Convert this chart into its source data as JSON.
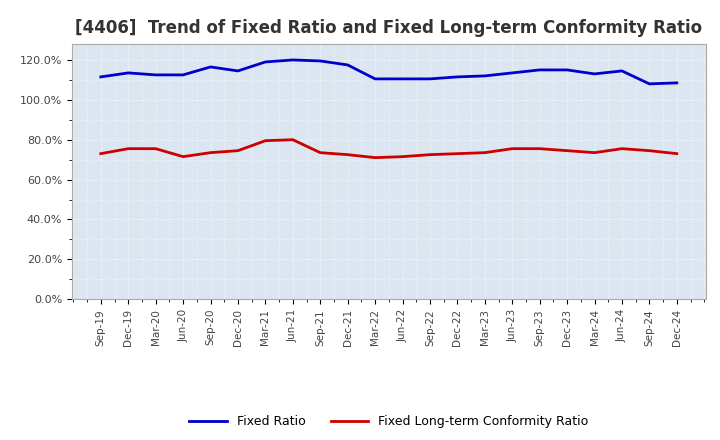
{
  "title": "[4406]  Trend of Fixed Ratio and Fixed Long-term Conformity Ratio",
  "x_labels": [
    "Sep-19",
    "Dec-19",
    "Mar-20",
    "Jun-20",
    "Sep-20",
    "Dec-20",
    "Mar-21",
    "Jun-21",
    "Sep-21",
    "Dec-21",
    "Mar-22",
    "Jun-22",
    "Sep-22",
    "Dec-22",
    "Mar-23",
    "Jun-23",
    "Sep-23",
    "Dec-23",
    "Mar-24",
    "Jun-24",
    "Sep-24",
    "Dec-24"
  ],
  "fixed_ratio": [
    111.5,
    113.5,
    112.5,
    112.5,
    116.5,
    114.5,
    119.0,
    120.0,
    119.5,
    117.5,
    110.5,
    110.5,
    110.5,
    111.5,
    112.0,
    113.5,
    115.0,
    115.0,
    113.0,
    114.5,
    108.0,
    108.5
  ],
  "fixed_lt_ratio": [
    73.0,
    75.5,
    75.5,
    71.5,
    73.5,
    74.5,
    79.5,
    80.0,
    73.5,
    72.5,
    71.0,
    71.5,
    72.5,
    73.0,
    73.5,
    75.5,
    75.5,
    74.5,
    73.5,
    75.5,
    74.5,
    73.0
  ],
  "fixed_ratio_color": "#0000cc",
  "fixed_lt_ratio_color": "#cc0000",
  "ylim": [
    0,
    128
  ],
  "yticks": [
    0,
    20,
    40,
    60,
    80,
    100,
    120
  ],
  "axes_facecolor": "#dce6f0",
  "figure_facecolor": "#ffffff",
  "grid_color": "#ffffff",
  "title_fontsize": 12,
  "legend_labels": [
    "Fixed Ratio",
    "Fixed Long-term Conformity Ratio"
  ]
}
